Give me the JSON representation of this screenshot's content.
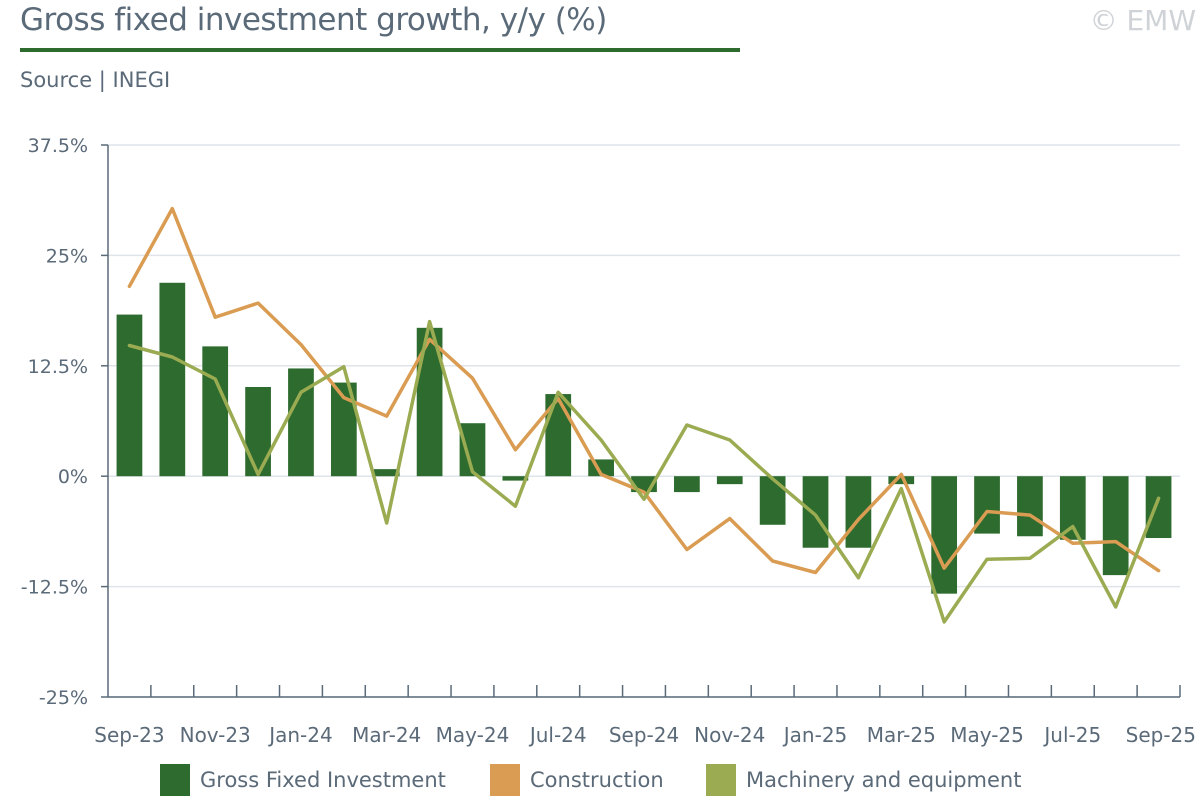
{
  "header": {
    "title": "Gross fixed investment growth, y/y (%)",
    "source": "Source | INEGI",
    "copyright": "© EMW"
  },
  "colors": {
    "gfi": "#2e6b2e",
    "construction": "#d99c52",
    "machinery": "#9aab52",
    "grid": "#dfe4ea",
    "axis": "#5b6a78"
  },
  "chart_data": {
    "type": "bar",
    "title": "Gross fixed investment growth, y/y (%)",
    "xlabel": "",
    "ylabel": "",
    "ylim": [
      -25,
      37.5
    ],
    "yticks": [
      37.5,
      25,
      12.5,
      0,
      -12.5,
      -25
    ],
    "ytick_labels": [
      "37.5%",
      "25%",
      "12.5%",
      "0%",
      "-12.5%",
      "-25%"
    ],
    "grid": true,
    "legend": "bottom",
    "categories": [
      "Sep-23",
      "Oct-23",
      "Nov-23",
      "Dec-23",
      "Jan-24",
      "Feb-24",
      "Mar-24",
      "Apr-24",
      "May-24",
      "Jun-24",
      "Jul-24",
      "Aug-24",
      "Sep-24",
      "Oct-24",
      "Nov-24",
      "Dec-24",
      "Jan-25",
      "Feb-25",
      "Mar-25",
      "Apr-25",
      "May-25",
      "Jun-25",
      "Jul-25",
      "Aug-25",
      "Sep-25"
    ],
    "xtick_labels": [
      "Sep-23",
      "",
      "Nov-23",
      "",
      "Jan-24",
      "",
      "Mar-24",
      "",
      "May-24",
      "",
      "Jul-24",
      "",
      "Sep-24",
      "",
      "Nov-24",
      "",
      "Jan-25",
      "",
      "Mar-25",
      "",
      "May-25",
      "",
      "Jul-25",
      "",
      "Sep-25"
    ],
    "series": [
      {
        "name": "Gross Fixed Investment",
        "type": "bar",
        "values": [
          18.3,
          21.9,
          14.7,
          10.1,
          12.2,
          10.6,
          0.8,
          16.8,
          6.0,
          -0.5,
          9.3,
          1.9,
          -1.8,
          -1.8,
          -0.9,
          -5.5,
          -8.1,
          -8.1,
          -0.9,
          -13.3,
          -6.5,
          -6.8,
          -7.2,
          -11.2,
          -7.0
        ]
      },
      {
        "name": "Construction",
        "type": "line",
        "values": [
          21.5,
          30.3,
          18.0,
          19.6,
          14.9,
          8.9,
          6.8,
          15.5,
          11.1,
          3.0,
          8.8,
          0.2,
          -1.8,
          -8.3,
          -4.8,
          -9.6,
          -10.9,
          -4.9,
          0.2,
          -10.4,
          -4.0,
          -4.4,
          -7.6,
          -7.4,
          -10.7
        ]
      },
      {
        "name": "Machinery and equipment",
        "type": "line",
        "values": [
          14.8,
          13.5,
          11.0,
          0.2,
          9.5,
          12.4,
          -5.3,
          17.5,
          0.5,
          -3.4,
          9.5,
          4.1,
          -2.6,
          5.8,
          4.1,
          -0.3,
          -4.4,
          -11.5,
          -1.4,
          -16.5,
          -9.4,
          -9.3,
          -5.7,
          -14.8,
          -2.5
        ]
      }
    ]
  }
}
